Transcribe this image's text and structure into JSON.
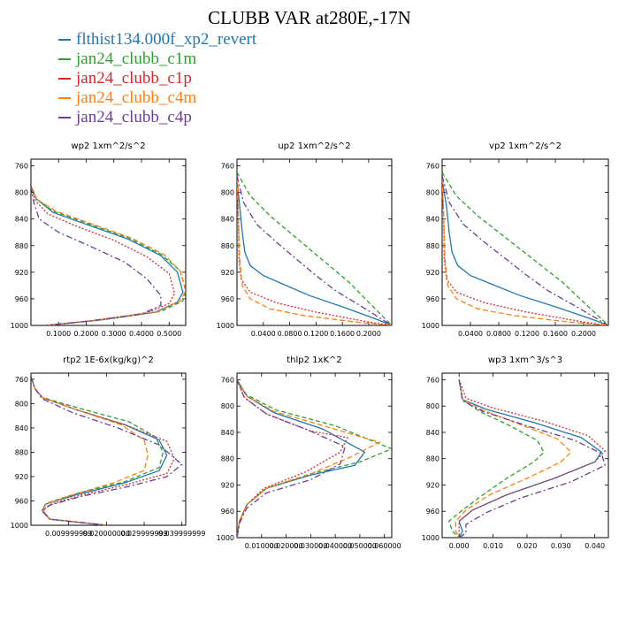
{
  "title": "CLUBB VAR at280E,-17N",
  "legend": [
    {
      "name": "flthist134.000f_xp2_revert",
      "color": "#1f77b4"
    },
    {
      "name": "jan24_clubb_c1m",
      "color": "#2ca02c"
    },
    {
      "name": "jan24_clubb_c1p",
      "color": "#d62728"
    },
    {
      "name": "jan24_clubb_c4m",
      "color": "#ff7f0e"
    },
    {
      "name": "jan24_clubb_c4p",
      "color": "#6a3d9a"
    }
  ],
  "chart_data": [
    {
      "type": "line",
      "title": "wp2  1xm^2/s^2",
      "xlim": [
        0,
        0.56
      ],
      "ylim": [
        1000,
        750
      ],
      "xticks": [
        0.1,
        0.2,
        0.3,
        0.4,
        0.5
      ],
      "xticklabels": [
        "0.1000",
        "0.2000",
        "0.3000",
        "0.4000",
        "0.5000"
      ],
      "yticks": [
        760,
        800,
        840,
        880,
        920,
        960,
        1000
      ],
      "series": [
        {
          "x": [
            0.0,
            0.02,
            0.08,
            0.2,
            0.35,
            0.47,
            0.53,
            0.55,
            0.53,
            0.45,
            0.25,
            0.05
          ],
          "y": [
            790,
            810,
            830,
            848,
            870,
            895,
            920,
            950,
            965,
            980,
            992,
            1000
          ]
        },
        {
          "x": [
            0.0,
            0.02,
            0.08,
            0.2,
            0.35,
            0.47,
            0.54,
            0.56,
            0.55,
            0.47,
            0.27,
            0.06
          ],
          "y": [
            790,
            810,
            828,
            846,
            868,
            893,
            918,
            948,
            963,
            979,
            991,
            1000
          ]
        },
        {
          "x": [
            0.0,
            0.015,
            0.06,
            0.16,
            0.3,
            0.42,
            0.5,
            0.52,
            0.5,
            0.42,
            0.22,
            0.05
          ],
          "y": [
            790,
            812,
            832,
            850,
            872,
            897,
            922,
            952,
            967,
            981,
            993,
            1000
          ]
        },
        {
          "x": [
            0.0,
            0.02,
            0.09,
            0.21,
            0.36,
            0.48,
            0.54,
            0.56,
            0.54,
            0.46,
            0.26,
            0.06
          ],
          "y": [
            790,
            810,
            828,
            846,
            868,
            893,
            918,
            948,
            963,
            979,
            991,
            1000
          ]
        },
        {
          "x": [
            0.0,
            0.01,
            0.03,
            0.1,
            0.22,
            0.34,
            0.42,
            0.47,
            0.47,
            0.4,
            0.2,
            0.05
          ],
          "y": [
            790,
            815,
            840,
            860,
            882,
            905,
            930,
            955,
            970,
            983,
            994,
            1000
          ]
        }
      ]
    },
    {
      "type": "line",
      "title": "up2  1xm^2/s^2",
      "xlim": [
        0,
        0.235
      ],
      "ylim": [
        1000,
        750
      ],
      "xticks": [
        0.04,
        0.08,
        0.12,
        0.16,
        0.2
      ],
      "xticklabels": [
        "0.0400",
        "0.0800",
        "0.1200",
        "0.1600",
        "0.2000"
      ],
      "yticks": [
        760,
        800,
        840,
        880,
        920,
        960,
        1000
      ],
      "series": [
        {
          "x": [
            0.0,
            0.004,
            0.008,
            0.012,
            0.02,
            0.04,
            0.07,
            0.11,
            0.16,
            0.21,
            0.235
          ],
          "y": [
            780,
            820,
            860,
            890,
            910,
            925,
            938,
            955,
            972,
            990,
            1000
          ]
        },
        {
          "x": [
            0.0,
            0.02,
            0.05,
            0.08,
            0.11,
            0.14,
            0.17,
            0.2,
            0.235
          ],
          "y": [
            770,
            805,
            835,
            860,
            885,
            910,
            935,
            965,
            1000
          ]
        },
        {
          "x": [
            0.0,
            0.002,
            0.003,
            0.006,
            0.02,
            0.06,
            0.12,
            0.2,
            0.235
          ],
          "y": [
            780,
            830,
            900,
            930,
            950,
            966,
            980,
            995,
            1000
          ]
        },
        {
          "x": [
            0.0,
            0.002,
            0.004,
            0.008,
            0.02,
            0.05,
            0.1,
            0.18,
            0.235
          ],
          "y": [
            780,
            830,
            900,
            940,
            960,
            975,
            985,
            995,
            1000
          ]
        },
        {
          "x": [
            0.0,
            0.01,
            0.03,
            0.06,
            0.09,
            0.12,
            0.15,
            0.19,
            0.235
          ],
          "y": [
            775,
            815,
            848,
            875,
            900,
            925,
            948,
            972,
            1000
          ]
        }
      ]
    },
    {
      "type": "line",
      "title": "vp2  1xm^2/s^2",
      "xlim": [
        0,
        0.235
      ],
      "ylim": [
        1000,
        750
      ],
      "xticks": [
        0.04,
        0.08,
        0.12,
        0.16,
        0.2
      ],
      "xticklabels": [
        "0.0400",
        "0.0800",
        "0.1200",
        "0.1600",
        "0.2000"
      ],
      "yticks": [
        760,
        800,
        840,
        880,
        920,
        960,
        1000
      ],
      "series": [
        {
          "x": [
            0.0,
            0.006,
            0.01,
            0.014,
            0.022,
            0.04,
            0.07,
            0.11,
            0.16,
            0.21,
            0.235
          ],
          "y": [
            780,
            820,
            860,
            890,
            910,
            925,
            938,
            955,
            972,
            990,
            1000
          ]
        },
        {
          "x": [
            0.0,
            0.02,
            0.05,
            0.08,
            0.11,
            0.14,
            0.17,
            0.2,
            0.235
          ],
          "y": [
            770,
            805,
            835,
            860,
            885,
            910,
            935,
            965,
            1000
          ]
        },
        {
          "x": [
            0.0,
            0.002,
            0.003,
            0.006,
            0.02,
            0.06,
            0.12,
            0.2,
            0.235
          ],
          "y": [
            780,
            830,
            900,
            930,
            950,
            966,
            980,
            995,
            1000
          ]
        },
        {
          "x": [
            0.0,
            0.002,
            0.004,
            0.008,
            0.02,
            0.05,
            0.1,
            0.18,
            0.235
          ],
          "y": [
            780,
            830,
            900,
            940,
            960,
            975,
            985,
            995,
            1000
          ]
        },
        {
          "x": [
            0.0,
            0.01,
            0.03,
            0.06,
            0.09,
            0.12,
            0.15,
            0.19,
            0.235
          ],
          "y": [
            775,
            815,
            848,
            875,
            900,
            925,
            948,
            972,
            1000
          ]
        }
      ]
    },
    {
      "type": "line",
      "title": "rtp2  1E-6x(kg/kg)^2",
      "xlim": [
        0,
        0.041
      ],
      "ylim": [
        1000,
        750
      ],
      "xticks": [
        0.01,
        0.02,
        0.03,
        0.04
      ],
      "xticklabels": [
        "0.009999999",
        "0.020000000",
        "0.029999999",
        "0.039999999"
      ],
      "yticks": [
        760,
        800,
        840,
        880,
        920,
        960,
        1000
      ],
      "series": [
        {
          "x": [
            0.0,
            0.001,
            0.003,
            0.012,
            0.025,
            0.034,
            0.036,
            0.034,
            0.025,
            0.012,
            0.004,
            0.003,
            0.005,
            0.02
          ],
          "y": [
            755,
            775,
            790,
            810,
            835,
            860,
            885,
            910,
            930,
            950,
            965,
            975,
            990,
            1000
          ]
        },
        {
          "x": [
            0.0,
            0.001,
            0.003,
            0.013,
            0.026,
            0.033,
            0.035,
            0.034,
            0.025,
            0.012,
            0.004,
            0.003,
            0.005,
            0.02
          ],
          "y": [
            755,
            775,
            790,
            808,
            830,
            855,
            880,
            905,
            928,
            948,
            964,
            974,
            990,
            1000
          ]
        },
        {
          "x": [
            0.0,
            0.001,
            0.003,
            0.012,
            0.025,
            0.036,
            0.038,
            0.036,
            0.026,
            0.013,
            0.005,
            0.003,
            0.005,
            0.02
          ],
          "y": [
            755,
            775,
            790,
            810,
            835,
            862,
            890,
            915,
            932,
            951,
            966,
            976,
            990,
            1000
          ]
        },
        {
          "x": [
            0.0,
            0.001,
            0.003,
            0.012,
            0.024,
            0.03,
            0.031,
            0.03,
            0.022,
            0.011,
            0.004,
            0.003,
            0.005,
            0.02
          ],
          "y": [
            755,
            775,
            790,
            810,
            835,
            860,
            885,
            910,
            930,
            950,
            965,
            975,
            990,
            1000
          ]
        },
        {
          "x": [
            0.0,
            0.001,
            0.003,
            0.011,
            0.023,
            0.034,
            0.04,
            0.036,
            0.026,
            0.013,
            0.005,
            0.003,
            0.005,
            0.02
          ],
          "y": [
            755,
            775,
            792,
            815,
            840,
            868,
            900,
            920,
            936,
            953,
            967,
            977,
            990,
            1000
          ]
        }
      ]
    },
    {
      "type": "line",
      "title": "thlp2  1xK^2",
      "xlim": [
        0,
        0.063
      ],
      "ylim": [
        1000,
        750
      ],
      "xticks": [
        0.01,
        0.02,
        0.03,
        0.04,
        0.05,
        0.06
      ],
      "xticklabels": [
        "0.010000",
        "0.020000",
        "0.030000",
        "0.040000",
        "0.050000",
        "0.060000"
      ],
      "yticks": [
        760,
        800,
        840,
        880,
        920,
        960,
        1000
      ],
      "series": [
        {
          "x": [
            0.0,
            0.004,
            0.015,
            0.035,
            0.052,
            0.048,
            0.03,
            0.012,
            0.004,
            0.001,
            0.0
          ],
          "y": [
            760,
            785,
            810,
            835,
            870,
            890,
            905,
            925,
            950,
            975,
            1000
          ]
        },
        {
          "x": [
            0.0,
            0.004,
            0.016,
            0.04,
            0.063,
            0.05,
            0.03,
            0.012,
            0.004,
            0.001,
            0.0
          ],
          "y": [
            760,
            783,
            806,
            830,
            865,
            885,
            903,
            925,
            950,
            975,
            1000
          ]
        },
        {
          "x": [
            0.0,
            0.003,
            0.012,
            0.03,
            0.045,
            0.042,
            0.028,
            0.011,
            0.004,
            0.001,
            0.0
          ],
          "y": [
            760,
            787,
            812,
            838,
            848,
            870,
            900,
            925,
            950,
            975,
            1000
          ]
        },
        {
          "x": [
            0.0,
            0.004,
            0.015,
            0.038,
            0.058,
            0.046,
            0.03,
            0.012,
            0.004,
            0.001,
            0.0
          ],
          "y": [
            760,
            785,
            808,
            833,
            855,
            878,
            903,
            925,
            950,
            975,
            1000
          ]
        },
        {
          "x": [
            0.0,
            0.003,
            0.012,
            0.03,
            0.044,
            0.042,
            0.03,
            0.012,
            0.004,
            0.001,
            0.0
          ],
          "y": [
            760,
            787,
            812,
            838,
            862,
            888,
            912,
            932,
            955,
            978,
            1000
          ]
        }
      ]
    },
    {
      "type": "line",
      "title": "wp3  1xm^3/s^3",
      "xlim": [
        -0.005,
        0.044
      ],
      "ylim": [
        1000,
        750
      ],
      "xticks": [
        0.0,
        0.01,
        0.02,
        0.03,
        0.04
      ],
      "xticklabels": [
        "0.000",
        "0.010",
        "0.020",
        "0.030",
        "0.040"
      ],
      "yticks": [
        760,
        800,
        840,
        880,
        920,
        960,
        1000
      ],
      "series": [
        {
          "x": [
            0.0,
            0.001,
            0.008,
            0.022,
            0.036,
            0.042,
            0.04,
            0.028,
            0.014,
            0.004,
            0.0,
            0.001,
            0.0
          ],
          "y": [
            760,
            790,
            805,
            825,
            848,
            870,
            885,
            910,
            935,
            958,
            975,
            990,
            1000
          ]
        },
        {
          "x": [
            0.0,
            0.001,
            0.006,
            0.015,
            0.023,
            0.025,
            0.022,
            0.014,
            0.007,
            0.001,
            -0.003,
            -0.002,
            0.0
          ],
          "y": [
            760,
            790,
            808,
            830,
            852,
            870,
            885,
            910,
            935,
            958,
            975,
            990,
            1000
          ]
        },
        {
          "x": [
            0.0,
            0.002,
            0.01,
            0.025,
            0.038,
            0.043,
            0.04,
            0.028,
            0.014,
            0.004,
            0.0,
            0.0,
            0.0
          ],
          "y": [
            760,
            788,
            803,
            823,
            845,
            868,
            885,
            910,
            935,
            958,
            975,
            990,
            1000
          ]
        },
        {
          "x": [
            0.0,
            0.001,
            0.007,
            0.018,
            0.029,
            0.033,
            0.03,
            0.02,
            0.009,
            0.002,
            -0.001,
            -0.001,
            0.0
          ],
          "y": [
            760,
            790,
            806,
            828,
            850,
            870,
            885,
            910,
            935,
            958,
            975,
            990,
            1000
          ]
        },
        {
          "x": [
            0.0,
            0.001,
            0.007,
            0.02,
            0.034,
            0.042,
            0.043,
            0.033,
            0.018,
            0.008,
            0.002,
            0.002,
            0.0
          ],
          "y": [
            760,
            792,
            808,
            830,
            852,
            872,
            890,
            915,
            940,
            962,
            980,
            993,
            1000
          ]
        }
      ]
    }
  ]
}
